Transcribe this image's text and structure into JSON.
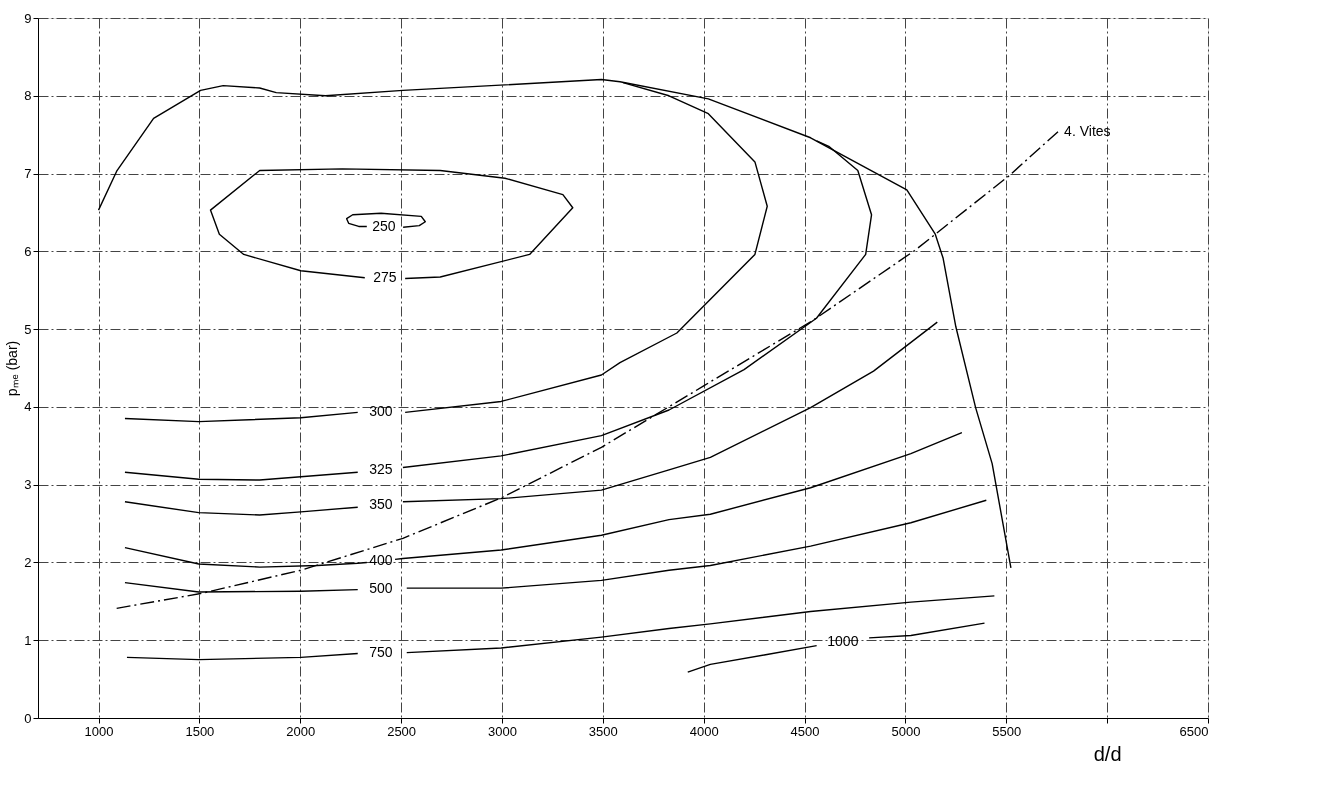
{
  "chart_data": {
    "type": "line",
    "xlabel": "d/d",
    "ylabel": "pₘₑ (bar)",
    "xlim": [
      700,
      6500
    ],
    "ylim": [
      0,
      9
    ],
    "xticks": [
      1000,
      1500,
      2000,
      2500,
      3000,
      3500,
      4000,
      4500,
      5000,
      5500,
      {
        "value": 6000,
        "label": null
      },
      6500
    ],
    "yticks": [
      0,
      1,
      2,
      3,
      4,
      5,
      6,
      7,
      8,
      9
    ],
    "grid": true,
    "series": [
      {
        "color": "#000000",
        "x": [
          1000,
          1090,
          1273,
          1506,
          1618,
          1799,
          1881,
          2125,
          2509,
          3015,
          3493,
          3585,
          4023,
          4530,
          5007,
          5148,
          5187,
          5250,
          5348,
          5430,
          5523
        ],
        "values": [
          6.53,
          7.03,
          7.71,
          8.07,
          8.13,
          8.1,
          8.04,
          8.0,
          8.07,
          8.14,
          8.21,
          8.18,
          7.96,
          7.46,
          6.79,
          6.22,
          5.91,
          5.03,
          3.99,
          3.27,
          1.93
        ]
      },
      {
        "name": "4. Vites",
        "color": "#000000",
        "line_style": "dashed",
        "x": [
          1090,
          1506,
          2003,
          2509,
          2996,
          3493,
          4000,
          4540,
          5046,
          5513,
          5757
        ],
        "values": [
          1.41,
          1.6,
          1.9,
          2.31,
          2.83,
          3.48,
          4.27,
          5.11,
          6.01,
          6.97,
          7.54
        ]
      },
      {
        "name": "250",
        "color": "#000000",
        "x": [
          2400,
          2260,
          2230,
          2240,
          2290,
          2330,
          2415,
          2510,
          2590,
          2620,
          2600,
          2400
        ],
        "values": [
          6.49,
          6.47,
          6.42,
          6.36,
          6.32,
          6.32,
          null,
          6.31,
          6.33,
          6.38,
          6.45,
          6.49
        ]
      },
      {
        "name": "275",
        "color": "#000000",
        "x": [
          2207,
          1799,
          1555,
          1599,
          1720,
          2003,
          2320,
          2420,
          2520,
          2694,
          3137,
          3351,
          3302,
          3015,
          2694,
          2207
        ],
        "values": [
          7.06,
          7.04,
          6.53,
          6.22,
          5.96,
          5.75,
          5.66,
          null,
          5.65,
          5.67,
          5.96,
          6.56,
          6.73,
          6.94,
          7.04,
          7.06
        ]
      },
      {
        "name": "300",
        "color": "#000000",
        "x": [
          1131,
          1497,
          2003,
          2285,
          2400,
          2520,
          2996,
          3493,
          3585,
          3867,
          4254,
          4315,
          4254,
          4023,
          3828,
          3600
        ],
        "values": [
          3.85,
          3.81,
          3.86,
          3.93,
          null,
          3.93,
          4.07,
          4.41,
          4.57,
          4.95,
          5.96,
          6.58,
          7.15,
          7.77,
          8.0,
          8.17
        ]
      },
      {
        "name": "325",
        "color": "#000000",
        "x": [
          1131,
          1497,
          1799,
          2285,
          2400,
          2509,
          2996,
          3493,
          3828,
          4200,
          4559,
          4803,
          4832,
          4764,
          4620,
          4560
        ],
        "values": [
          3.16,
          3.07,
          3.06,
          3.16,
          null,
          3.22,
          3.37,
          3.63,
          3.96,
          4.48,
          5.14,
          5.96,
          6.47,
          7.04,
          7.35,
          7.42
        ]
      },
      {
        "name": "350",
        "color": "#000000",
        "x": [
          1131,
          1497,
          1799,
          2003,
          2285,
          2400,
          2509,
          2996,
          3493,
          3828,
          4033,
          4530,
          4842,
          5158
        ],
        "values": [
          2.78,
          2.64,
          2.61,
          2.65,
          2.71,
          null,
          2.78,
          2.82,
          2.93,
          3.19,
          3.35,
          3.99,
          4.46,
          5.09
        ]
      },
      {
        "name": "400",
        "color": "#000000",
        "x": [
          1131,
          1497,
          1799,
          2085,
          2285,
          2330,
          2400,
          2470,
          2509,
          2996,
          3493,
          3828,
          4033,
          4530,
          5027,
          5280
        ],
        "values": [
          2.19,
          1.98,
          1.94,
          1.96,
          1.99,
          2.0,
          null,
          2.04,
          2.05,
          2.16,
          2.35,
          2.55,
          2.62,
          2.96,
          3.4,
          3.67
        ]
      },
      {
        "name": "500",
        "color": "#000000",
        "x": [
          1131,
          1497,
          2003,
          2285,
          2400,
          2528,
          2996,
          3493,
          3828,
          4033,
          4530,
          5027,
          5401
        ],
        "values": [
          1.74,
          1.62,
          1.63,
          1.65,
          null,
          1.67,
          1.67,
          1.77,
          1.9,
          1.96,
          2.21,
          2.51,
          2.8
        ]
      },
      {
        "name": "750",
        "color": "#000000",
        "x": [
          1141,
          1497,
          2003,
          2285,
          2400,
          2528,
          2996,
          3493,
          3828,
          4033,
          4530,
          5027,
          5441
        ],
        "values": [
          0.78,
          0.75,
          0.78,
          0.83,
          null,
          0.84,
          0.9,
          1.04,
          1.15,
          1.21,
          1.37,
          1.49,
          1.57
        ]
      },
      {
        "name": "1000",
        "color": "#000000",
        "x": [
          3921,
          4033,
          4300,
          4560,
          4690,
          4820,
          5027,
          5392
        ],
        "values": [
          0.59,
          0.69,
          0.81,
          0.93,
          null,
          1.03,
          1.06,
          1.22
        ]
      }
    ]
  }
}
